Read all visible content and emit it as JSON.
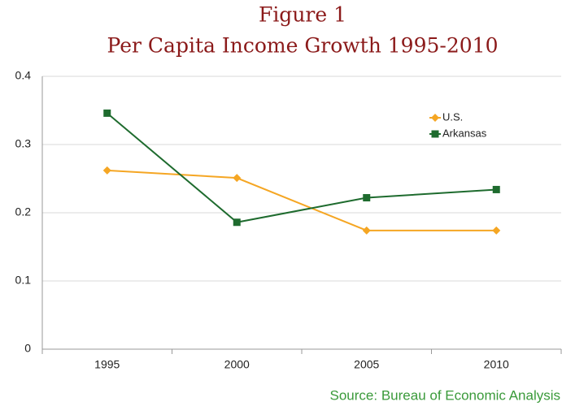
{
  "chart_data": {
    "type": "line",
    "title": "Figure 1",
    "subtitle": "Per Capita Income Growth 1995-2010",
    "source": "Source: Bureau of Economic Analysis",
    "categories": [
      "1995",
      "2000",
      "2005",
      "2010"
    ],
    "series": [
      {
        "name": "U.S.",
        "color": "#f5a623",
        "marker": "diamond",
        "values": [
          0.262,
          0.251,
          0.174,
          0.174
        ]
      },
      {
        "name": "Arkansas",
        "color": "#1e6b2e",
        "marker": "square",
        "values": [
          0.346,
          0.186,
          0.222,
          0.234
        ]
      }
    ],
    "ylim": [
      0,
      0.4
    ],
    "yticks": [
      0,
      0.1,
      0.2,
      0.3,
      0.4
    ],
    "grid": true,
    "legend": "upper right"
  }
}
